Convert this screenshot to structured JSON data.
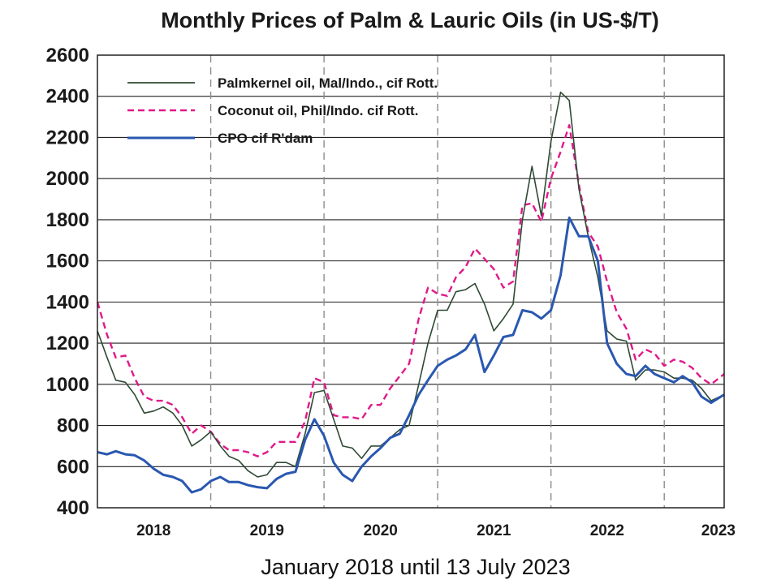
{
  "chart_data": {
    "type": "line",
    "title": "Monthly Prices of Palm & Lauric Oils (in US-$/T)",
    "caption": "January 2018 until 13 July 2023",
    "xlabel": "",
    "ylabel": "",
    "ylim": [
      400,
      2600
    ],
    "xlim": [
      "2018-01-01",
      "2023-07-13"
    ],
    "yticks": [
      400,
      600,
      800,
      1000,
      1200,
      1400,
      1600,
      1800,
      2000,
      2200,
      2400,
      2600
    ],
    "xtick_labels": [
      "2018",
      "2019",
      "2020",
      "2021",
      "2022",
      "2023"
    ],
    "year_dividers": [
      "2019-01-01",
      "2020-01-01",
      "2021-01-01",
      "2022-01-01",
      "2023-01-01"
    ],
    "grid": "horizontal lines at y ticks; dashed vertical lines at year boundaries",
    "legend_position": "top-left",
    "series": [
      {
        "name": "Palmkernel oil, Mal/Indo., cif Rott.",
        "color": "#2e4a34",
        "dash": "solid",
        "points": [
          [
            "2018-01-01",
            1260
          ],
          [
            "2018-02-01",
            1130
          ],
          [
            "2018-03-01",
            1020
          ],
          [
            "2018-04-01",
            1010
          ],
          [
            "2018-05-01",
            950
          ],
          [
            "2018-06-01",
            860
          ],
          [
            "2018-07-01",
            870
          ],
          [
            "2018-08-01",
            890
          ],
          [
            "2018-09-01",
            860
          ],
          [
            "2018-10-01",
            800
          ],
          [
            "2018-11-01",
            700
          ],
          [
            "2018-12-01",
            730
          ],
          [
            "2019-01-01",
            770
          ],
          [
            "2019-02-01",
            700
          ],
          [
            "2019-03-01",
            650
          ],
          [
            "2019-04-01",
            630
          ],
          [
            "2019-05-01",
            580
          ],
          [
            "2019-06-01",
            550
          ],
          [
            "2019-07-01",
            560
          ],
          [
            "2019-08-01",
            620
          ],
          [
            "2019-09-01",
            620
          ],
          [
            "2019-10-01",
            600
          ],
          [
            "2019-11-01",
            760
          ],
          [
            "2019-12-01",
            960
          ],
          [
            "2020-01-01",
            970
          ],
          [
            "2020-02-01",
            830
          ],
          [
            "2020-03-01",
            700
          ],
          [
            "2020-04-01",
            690
          ],
          [
            "2020-05-01",
            640
          ],
          [
            "2020-06-01",
            700
          ],
          [
            "2020-07-01",
            700
          ],
          [
            "2020-08-01",
            740
          ],
          [
            "2020-09-01",
            780
          ],
          [
            "2020-10-01",
            800
          ],
          [
            "2020-11-01",
            1000
          ],
          [
            "2020-12-01",
            1200
          ],
          [
            "2021-01-01",
            1360
          ],
          [
            "2021-02-01",
            1360
          ],
          [
            "2021-03-01",
            1450
          ],
          [
            "2021-04-01",
            1460
          ],
          [
            "2021-05-01",
            1490
          ],
          [
            "2021-06-01",
            1390
          ],
          [
            "2021-07-01",
            1260
          ],
          [
            "2021-08-01",
            1320
          ],
          [
            "2021-09-01",
            1390
          ],
          [
            "2021-10-01",
            1800
          ],
          [
            "2021-11-01",
            2060
          ],
          [
            "2021-12-01",
            1820
          ],
          [
            "2022-01-01",
            2180
          ],
          [
            "2022-02-01",
            2420
          ],
          [
            "2022-03-01",
            2380
          ],
          [
            "2022-04-01",
            1950
          ],
          [
            "2022-05-01",
            1720
          ],
          [
            "2022-06-01",
            1520
          ],
          [
            "2022-07-01",
            1260
          ],
          [
            "2022-08-01",
            1220
          ],
          [
            "2022-09-01",
            1210
          ],
          [
            "2022-10-01",
            1020
          ],
          [
            "2022-11-01",
            1070
          ],
          [
            "2022-12-01",
            1070
          ],
          [
            "2023-01-01",
            1060
          ],
          [
            "2023-02-01",
            1030
          ],
          [
            "2023-03-01",
            1030
          ],
          [
            "2023-04-01",
            1020
          ],
          [
            "2023-05-01",
            980
          ],
          [
            "2023-06-01",
            920
          ],
          [
            "2023-07-13",
            950
          ]
        ]
      },
      {
        "name": "Coconut oil, Phil/Indo. cif Rott.",
        "color": "#e0198a",
        "dash": "dashed",
        "points": [
          [
            "2018-01-01",
            1400
          ],
          [
            "2018-02-01",
            1240
          ],
          [
            "2018-03-01",
            1130
          ],
          [
            "2018-04-01",
            1140
          ],
          [
            "2018-05-01",
            1030
          ],
          [
            "2018-06-01",
            940
          ],
          [
            "2018-07-01",
            920
          ],
          [
            "2018-08-01",
            920
          ],
          [
            "2018-09-01",
            900
          ],
          [
            "2018-10-01",
            840
          ],
          [
            "2018-11-01",
            760
          ],
          [
            "2018-12-01",
            800
          ],
          [
            "2019-01-01",
            770
          ],
          [
            "2019-02-01",
            710
          ],
          [
            "2019-03-01",
            680
          ],
          [
            "2019-04-01",
            680
          ],
          [
            "2019-05-01",
            670
          ],
          [
            "2019-06-01",
            650
          ],
          [
            "2019-07-01",
            670
          ],
          [
            "2019-08-01",
            720
          ],
          [
            "2019-09-01",
            720
          ],
          [
            "2019-10-01",
            720
          ],
          [
            "2019-11-01",
            820
          ],
          [
            "2019-12-01",
            1030
          ],
          [
            "2020-01-01",
            1010
          ],
          [
            "2020-02-01",
            850
          ],
          [
            "2020-03-01",
            840
          ],
          [
            "2020-04-01",
            840
          ],
          [
            "2020-05-01",
            830
          ],
          [
            "2020-06-01",
            900
          ],
          [
            "2020-07-01",
            900
          ],
          [
            "2020-08-01",
            980
          ],
          [
            "2020-09-01",
            1040
          ],
          [
            "2020-10-01",
            1100
          ],
          [
            "2020-11-01",
            1320
          ],
          [
            "2020-12-01",
            1470
          ],
          [
            "2021-01-01",
            1440
          ],
          [
            "2021-02-01",
            1430
          ],
          [
            "2021-03-01",
            1520
          ],
          [
            "2021-04-01",
            1570
          ],
          [
            "2021-05-01",
            1660
          ],
          [
            "2021-06-01",
            1610
          ],
          [
            "2021-07-01",
            1560
          ],
          [
            "2021-08-01",
            1470
          ],
          [
            "2021-09-01",
            1500
          ],
          [
            "2021-10-01",
            1870
          ],
          [
            "2021-11-01",
            1880
          ],
          [
            "2021-12-01",
            1790
          ],
          [
            "2022-01-01",
            2000
          ],
          [
            "2022-02-01",
            2130
          ],
          [
            "2022-03-01",
            2260
          ],
          [
            "2022-04-01",
            1970
          ],
          [
            "2022-05-01",
            1740
          ],
          [
            "2022-06-01",
            1670
          ],
          [
            "2022-07-01",
            1500
          ],
          [
            "2022-08-01",
            1350
          ],
          [
            "2022-09-01",
            1270
          ],
          [
            "2022-10-01",
            1120
          ],
          [
            "2022-11-01",
            1170
          ],
          [
            "2022-12-01",
            1150
          ],
          [
            "2023-01-01",
            1090
          ],
          [
            "2023-02-01",
            1120
          ],
          [
            "2023-03-01",
            1110
          ],
          [
            "2023-04-01",
            1080
          ],
          [
            "2023-05-01",
            1030
          ],
          [
            "2023-06-01",
            1000
          ],
          [
            "2023-07-13",
            1050
          ]
        ]
      },
      {
        "name": "CPO cif R'dam",
        "color": "#2a58b0",
        "dash": "solid",
        "points": [
          [
            "2018-01-01",
            670
          ],
          [
            "2018-02-01",
            660
          ],
          [
            "2018-03-01",
            675
          ],
          [
            "2018-04-01",
            660
          ],
          [
            "2018-05-01",
            655
          ],
          [
            "2018-06-01",
            630
          ],
          [
            "2018-07-01",
            590
          ],
          [
            "2018-08-01",
            560
          ],
          [
            "2018-09-01",
            550
          ],
          [
            "2018-10-01",
            530
          ],
          [
            "2018-11-01",
            475
          ],
          [
            "2018-12-01",
            490
          ],
          [
            "2019-01-01",
            530
          ],
          [
            "2019-02-01",
            550
          ],
          [
            "2019-03-01",
            525
          ],
          [
            "2019-04-01",
            525
          ],
          [
            "2019-05-01",
            510
          ],
          [
            "2019-06-01",
            500
          ],
          [
            "2019-07-01",
            495
          ],
          [
            "2019-08-01",
            540
          ],
          [
            "2019-09-01",
            565
          ],
          [
            "2019-10-01",
            575
          ],
          [
            "2019-11-01",
            730
          ],
          [
            "2019-12-01",
            830
          ],
          [
            "2020-01-01",
            750
          ],
          [
            "2020-02-01",
            620
          ],
          [
            "2020-03-01",
            560
          ],
          [
            "2020-04-01",
            530
          ],
          [
            "2020-05-01",
            600
          ],
          [
            "2020-06-01",
            650
          ],
          [
            "2020-07-01",
            690
          ],
          [
            "2020-08-01",
            740
          ],
          [
            "2020-09-01",
            760
          ],
          [
            "2020-10-01",
            850
          ],
          [
            "2020-11-01",
            950
          ],
          [
            "2020-12-01",
            1020
          ],
          [
            "2021-01-01",
            1090
          ],
          [
            "2021-02-01",
            1120
          ],
          [
            "2021-03-01",
            1140
          ],
          [
            "2021-04-01",
            1170
          ],
          [
            "2021-05-01",
            1240
          ],
          [
            "2021-06-01",
            1060
          ],
          [
            "2021-07-01",
            1140
          ],
          [
            "2021-08-01",
            1230
          ],
          [
            "2021-09-01",
            1240
          ],
          [
            "2021-10-01",
            1360
          ],
          [
            "2021-11-01",
            1350
          ],
          [
            "2021-12-01",
            1320
          ],
          [
            "2022-01-01",
            1360
          ],
          [
            "2022-02-01",
            1530
          ],
          [
            "2022-03-01",
            1810
          ],
          [
            "2022-04-01",
            1720
          ],
          [
            "2022-05-01",
            1720
          ],
          [
            "2022-06-01",
            1600
          ],
          [
            "2022-07-01",
            1200
          ],
          [
            "2022-08-01",
            1100
          ],
          [
            "2022-09-01",
            1050
          ],
          [
            "2022-10-01",
            1040
          ],
          [
            "2022-11-01",
            1090
          ],
          [
            "2022-12-01",
            1050
          ],
          [
            "2023-01-01",
            1030
          ],
          [
            "2023-02-01",
            1010
          ],
          [
            "2023-03-01",
            1040
          ],
          [
            "2023-04-01",
            1010
          ],
          [
            "2023-05-01",
            940
          ],
          [
            "2023-06-01",
            910
          ],
          [
            "2023-07-13",
            950
          ]
        ]
      }
    ]
  }
}
